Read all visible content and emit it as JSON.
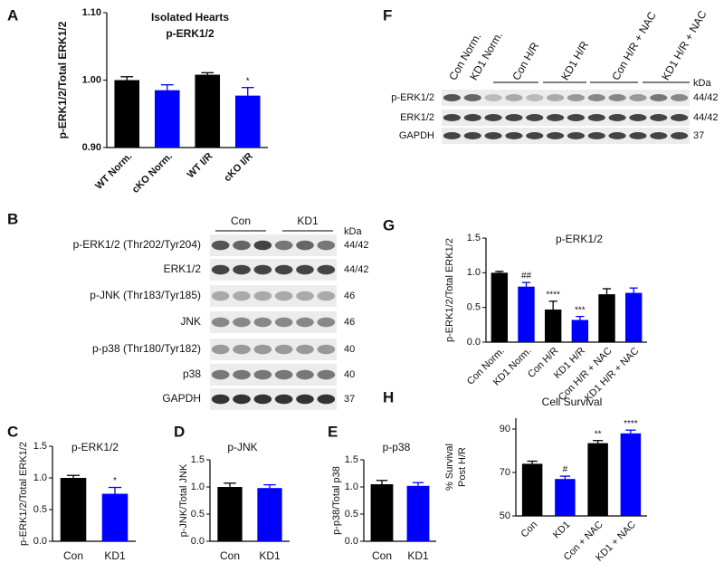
{
  "chart_data": [
    {
      "type": "bar",
      "panel": "A",
      "title": "Isolated Hearts",
      "subtitle": "p-ERK1/2",
      "y_label": "p-ERK1/2/Total ERK1/2",
      "categories": [
        "WT Norm.",
        "cKO Norm.",
        "WT I/R",
        "cKO I/R"
      ],
      "values": [
        1.0,
        0.985,
        1.008,
        0.977
      ],
      "errors": [
        0.005,
        0.008,
        0.003,
        0.012
      ],
      "colors": [
        "#000000",
        "#0000ff",
        "#000000",
        "#0000ff"
      ],
      "annotations": [
        null,
        null,
        null,
        "*"
      ],
      "ylim": [
        0.9,
        1.1
      ],
      "yticks": [
        {
          "value": 0.9,
          "label": "0.90"
        },
        {
          "value": 1.0,
          "label": "1.00"
        },
        {
          "value": 1.1,
          "label": "1.10"
        }
      ]
    },
    {
      "type": "bar",
      "panel": "C",
      "title": "p-ERK1/2",
      "y_label": "p-ERK1/2/Total ERK1/2",
      "categories": [
        "Con",
        "KD1"
      ],
      "values": [
        1.0,
        0.75
      ],
      "errors": [
        0.04,
        0.1
      ],
      "colors": [
        "#000000",
        "#0000ff"
      ],
      "annotations": [
        null,
        "*"
      ],
      "ylim": [
        0,
        1.5
      ],
      "yticks": [
        {
          "value": 0,
          "label": "0.0"
        },
        {
          "value": 0.5,
          "label": "0.5"
        },
        {
          "value": 1.0,
          "label": "1.0"
        },
        {
          "value": 1.5,
          "label": "1.5"
        }
      ]
    },
    {
      "type": "bar",
      "panel": "D",
      "title": "p-JNK",
      "y_label": "p-JNK/Total JNK",
      "categories": [
        "Con",
        "KD1"
      ],
      "values": [
        1.0,
        0.98
      ],
      "errors": [
        0.07,
        0.06
      ],
      "colors": [
        "#000000",
        "#0000ff"
      ],
      "annotations": [
        null,
        null
      ],
      "ylim": [
        0,
        1.5
      ],
      "yticks": [
        {
          "value": 0,
          "label": "0.0"
        },
        {
          "value": 0.5,
          "label": "0.5"
        },
        {
          "value": 1.0,
          "label": "1.0"
        },
        {
          "value": 1.5,
          "label": "1.5"
        }
      ]
    },
    {
      "type": "bar",
      "panel": "E",
      "title": "p-p38",
      "y_label": "p-p38/Total p38",
      "categories": [
        "Con",
        "KD1"
      ],
      "values": [
        1.05,
        1.02
      ],
      "errors": [
        0.07,
        0.06
      ],
      "colors": [
        "#000000",
        "#0000ff"
      ],
      "annotations": [
        null,
        null
      ],
      "ylim": [
        0,
        1.5
      ],
      "yticks": [
        {
          "value": 0,
          "label": "0.0"
        },
        {
          "value": 0.5,
          "label": "0.5"
        },
        {
          "value": 1.0,
          "label": "1.0"
        },
        {
          "value": 1.5,
          "label": "1.5"
        }
      ]
    },
    {
      "type": "bar",
      "panel": "G",
      "title": "p-ERK1/2",
      "y_label": "p-ERK1/2/Total ERK1/2",
      "categories": [
        "Con Norm.",
        "KD1 Norm.",
        "Con H/R",
        "KD1 H/R",
        "Con H/R + NAC",
        "KD1 H/R + NAC"
      ],
      "values": [
        1.0,
        0.8,
        0.47,
        0.32,
        0.69,
        0.71
      ],
      "errors": [
        0.02,
        0.06,
        0.12,
        0.05,
        0.08,
        0.07
      ],
      "colors": [
        "#000000",
        "#0000ff",
        "#000000",
        "#0000ff",
        "#000000",
        "#0000ff"
      ],
      "annotations": [
        null,
        "##",
        "****",
        "***",
        null,
        null
      ],
      "ylim": [
        0,
        1.5
      ],
      "yticks": [
        {
          "value": 0,
          "label": "0.0"
        },
        {
          "value": 0.5,
          "label": "0.5"
        },
        {
          "value": 1.0,
          "label": "1.0"
        },
        {
          "value": 1.5,
          "label": "1.5"
        }
      ]
    },
    {
      "type": "bar",
      "panel": "H",
      "title": "Cell Survival",
      "y_label": [
        "% Survival",
        "Post H/R"
      ],
      "categories": [
        "Con",
        "KD1",
        "Con + NAC",
        "KD1 + NAC"
      ],
      "values": [
        74,
        67,
        83.5,
        88
      ],
      "errors": [
        1.2,
        1.3,
        1.2,
        1.5
      ],
      "colors": [
        "#000000",
        "#0000ff",
        "#000000",
        "#0000ff"
      ],
      "annotations": [
        null,
        "#",
        "**",
        "****"
      ],
      "ylim": [
        50,
        95
      ],
      "yticks": [
        50,
        70,
        90
      ]
    }
  ],
  "blots": [
    {
      "panel": "B",
      "groups": [
        "Con",
        "KD1"
      ],
      "kda_header": "kDa",
      "rows": [
        {
          "label": "p-ERK1/2 (Thr202/Tyr204)",
          "kda": "44/42"
        },
        {
          "label": "ERK1/2",
          "kda": "44/42"
        },
        {
          "label": "p-JNK (Thr183/Tyr185)",
          "kda": 46
        },
        {
          "label": "JNK",
          "kda": 46
        },
        {
          "label": "p-p38 (Thr180/Tyr182)",
          "kda": 40
        },
        {
          "label": "p38",
          "kda": 40
        },
        {
          "label": "GAPDH",
          "kda": 37
        }
      ]
    },
    {
      "panel": "F",
      "lanes": [
        "Con Norm.",
        "KD1 Norm.",
        "Con H/R",
        "KD1 H/R",
        "Con H/R + NAC",
        "KD1 H/R + NAC"
      ],
      "kda_header": "kDa",
      "rows": [
        {
          "label": "p-ERK1/2",
          "kda": "44/42"
        },
        {
          "label": "ERK1/2",
          "kda": "44/42"
        },
        {
          "label": "GAPDH",
          "kda": 37
        }
      ]
    }
  ]
}
